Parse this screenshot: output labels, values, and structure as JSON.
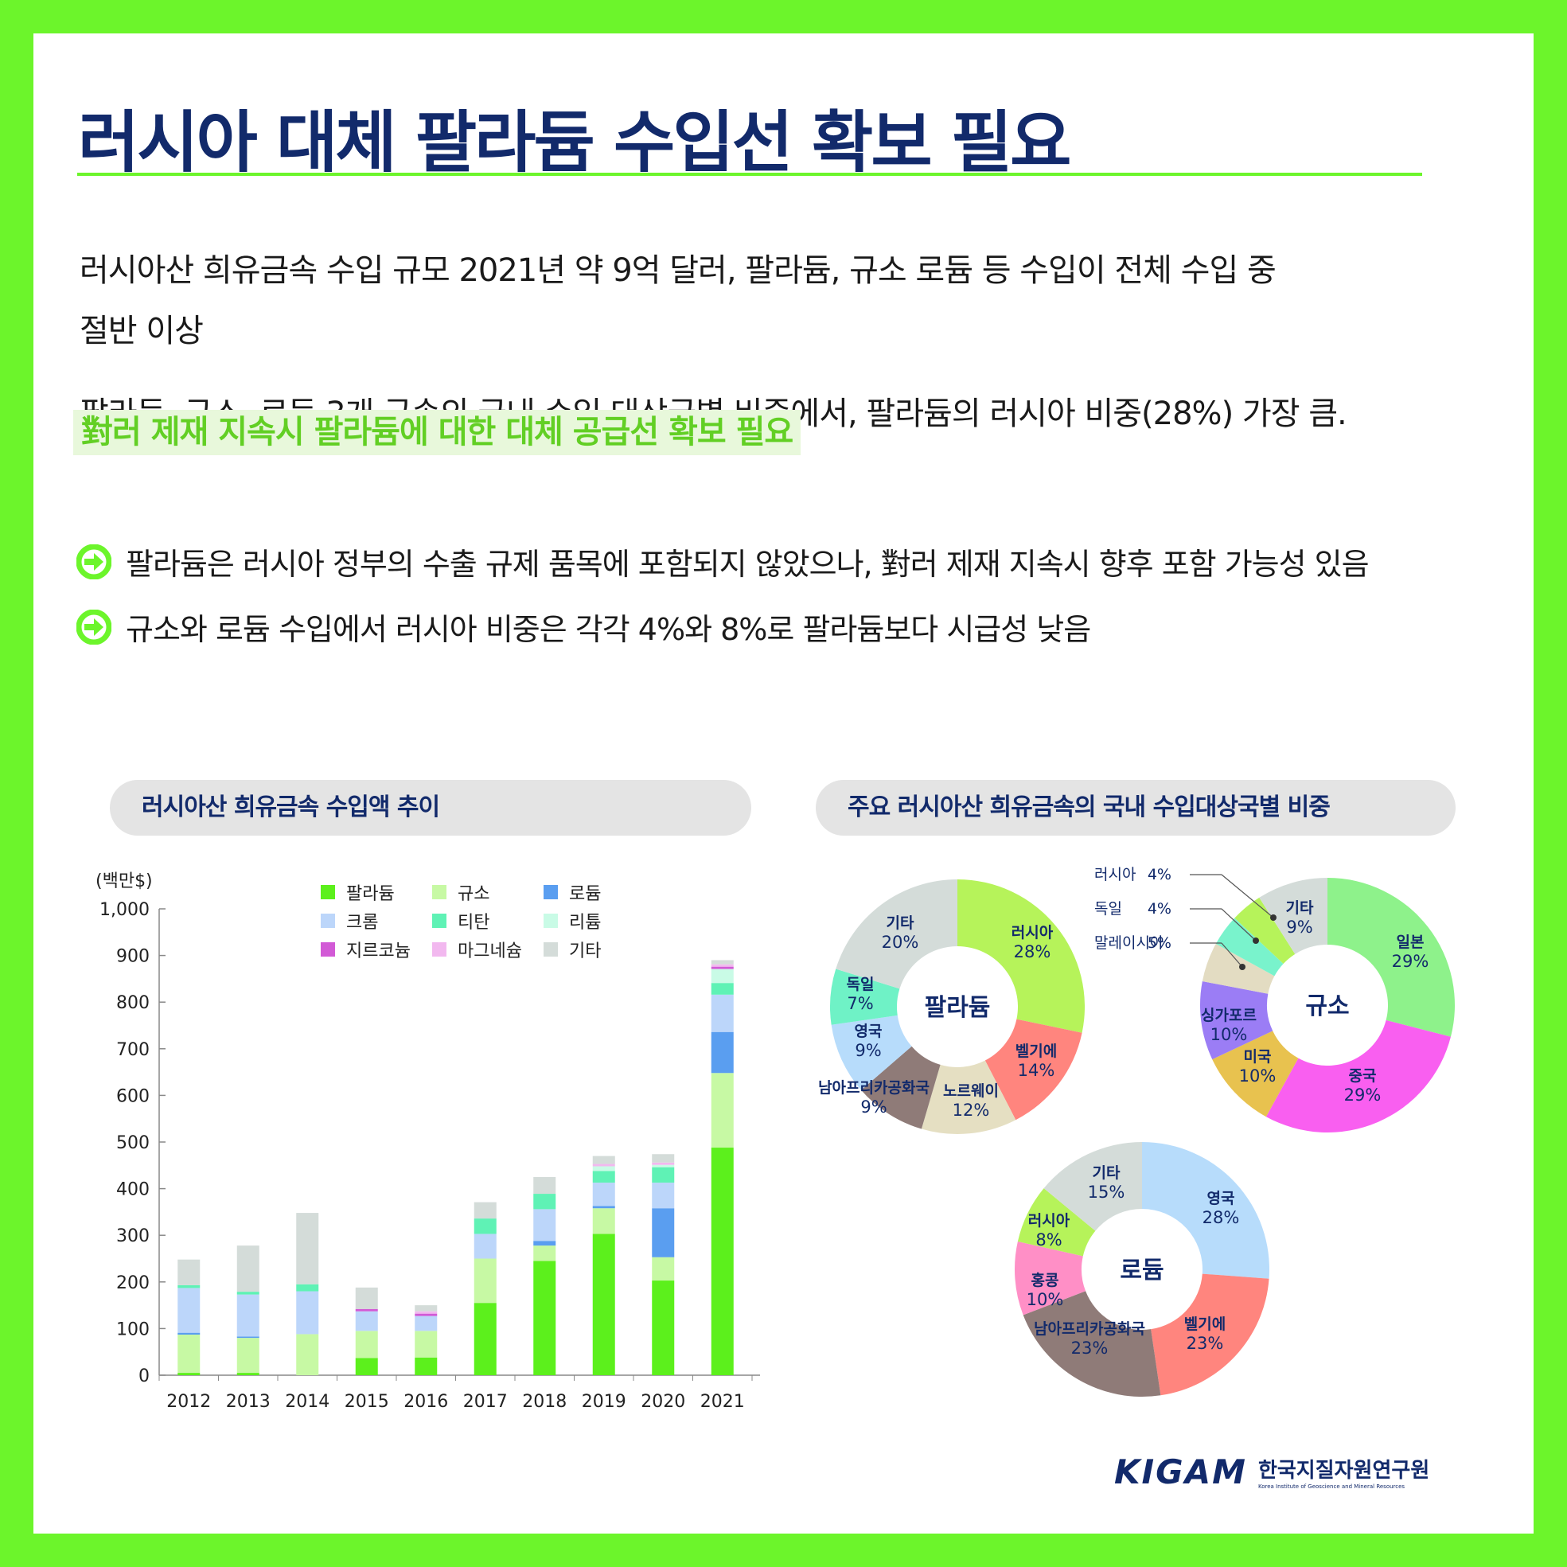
{
  "header": {
    "title": "러시아 대체 팔라듐 수입선 확보 필요"
  },
  "body": {
    "para1_line1": "러시아산 희유금속 수입 규모 2021년 약 9억 달러, 팔라듐, 규소 로듐 등 수입이 전체 수입 중",
    "para1_line2": "절반 이상",
    "para2": "팔라듐, 규소, 로듐 3개 금속의 국내 수입 대상국별 비중에서, 팔라듐의 러시아 비중(28%) 가장 큼.",
    "highlight": "對러 제재 지속시 팔라듐에 대한 대체 공급선 확보 필요",
    "bullets": [
      "팔라듐은 러시아 정부의 수출 규제 품목에 포함되지 않았으나, 對러 제재 지속시 향후 포함 가능성 있음",
      "규소와 로듐 수입에서 러시아 비중은 각각 4%와 8%로 팔라듐보다 시급성 낮음"
    ]
  },
  "section_titles": {
    "left": "러시아산 희유금속 수입액 추이",
    "right": "주요 러시아산 희유금속의 국내 수입대상국별 비중"
  },
  "colors": {
    "frame": "#6cf52b",
    "title": "#122a6b",
    "highlight_text": "#62cf24",
    "highlight_bg": "#e8f8db"
  },
  "chart_data": [
    {
      "type": "bar",
      "stacked": true,
      "ylabel": "(백만$)",
      "ylim": [
        0,
        1000
      ],
      "yticks": [
        0,
        100,
        200,
        300,
        400,
        500,
        600,
        700,
        800,
        900,
        1000
      ],
      "ytick_labels": [
        "0",
        "100",
        "200",
        "300",
        "400",
        "500",
        "600",
        "700",
        "800",
        "900",
        "1,000"
      ],
      "categories": [
        "2012",
        "2013",
        "2014",
        "2015",
        "2016",
        "2017",
        "2018",
        "2019",
        "2020",
        "2021"
      ],
      "legend_position": "top",
      "series": [
        {
          "name": "팔라듐",
          "color": "#5cf01c",
          "values": [
            5,
            5,
            0,
            37,
            38,
            155,
            245,
            303,
            203,
            488
          ]
        },
        {
          "name": "규소",
          "color": "#c7f9a4",
          "values": [
            82,
            75,
            88,
            58,
            57,
            95,
            33,
            55,
            50,
            160
          ]
        },
        {
          "name": "로듐",
          "color": "#5a9ef0",
          "values": [
            4,
            3,
            0,
            0,
            0,
            0,
            10,
            5,
            105,
            88
          ]
        },
        {
          "name": "크롬",
          "color": "#bcd6fa",
          "values": [
            96,
            90,
            92,
            42,
            32,
            53,
            68,
            50,
            55,
            80
          ]
        },
        {
          "name": "티탄",
          "color": "#5ff2b5",
          "values": [
            6,
            6,
            15,
            0,
            0,
            33,
            33,
            25,
            33,
            25
          ]
        },
        {
          "name": "리튬",
          "color": "#c9fbe6",
          "values": [
            0,
            0,
            0,
            0,
            0,
            0,
            0,
            10,
            5,
            30
          ]
        },
        {
          "name": "지르코늄",
          "color": "#d25ad6",
          "values": [
            0,
            0,
            0,
            5,
            5,
            0,
            0,
            0,
            0,
            5
          ]
        },
        {
          "name": "마그네슘",
          "color": "#f2b8ef",
          "values": [
            0,
            0,
            0,
            0,
            5,
            0,
            0,
            5,
            5,
            5
          ]
        },
        {
          "name": "기타",
          "color": "#d4dcd9",
          "values": [
            55,
            99,
            153,
            46,
            13,
            35,
            36,
            17,
            18,
            9
          ]
        }
      ]
    },
    {
      "type": "pie",
      "donut": true,
      "title": "팔라듐",
      "slices": [
        {
          "label": "러시아",
          "value": 28,
          "pct": "28%",
          "color": "#b6f35a"
        },
        {
          "label": "벨기에",
          "value": 14,
          "pct": "14%",
          "color": "#ff857e"
        },
        {
          "label": "노르웨이",
          "value": 12,
          "pct": "12%",
          "color": "#e5dfc2"
        },
        {
          "label": "남아프리카공화국",
          "value": 9,
          "pct": "9%",
          "color": "#8f7b78"
        },
        {
          "label": "영국",
          "value": 9,
          "pct": "9%",
          "color": "#b7dcfb"
        },
        {
          "label": "독일",
          "value": 7,
          "pct": "7%",
          "color": "#6ff2c6"
        },
        {
          "label": "기타",
          "value": 20,
          "pct": "20%",
          "color": "#d4dcd9"
        }
      ]
    },
    {
      "type": "pie",
      "donut": true,
      "title": "규소",
      "slices": [
        {
          "label": "일본",
          "value": 29,
          "pct": "29%",
          "color": "#8ef28b"
        },
        {
          "label": "중국",
          "value": 29,
          "pct": "29%",
          "color": "#f95ff0"
        },
        {
          "label": "미국",
          "value": 10,
          "pct": "10%",
          "color": "#e8c24f"
        },
        {
          "label": "싱가포르",
          "value": 10,
          "pct": "10%",
          "color": "#9b7df5"
        },
        {
          "label": "말레이시아",
          "value": 5,
          "pct": "5%",
          "color": "#e3dcc2"
        },
        {
          "label": "독일",
          "value": 4,
          "pct": "4%",
          "color": "#79f3cc"
        },
        {
          "label": "러시아",
          "value": 4,
          "pct": "4%",
          "color": "#b6f35a"
        },
        {
          "label": "기타",
          "value": 9,
          "pct": "9%",
          "color": "#d4dcd9"
        }
      ]
    },
    {
      "type": "pie",
      "donut": true,
      "title": "로듐",
      "slices": [
        {
          "label": "영국",
          "value": 28,
          "pct": "28%",
          "color": "#b7dcfb"
        },
        {
          "label": "벨기에",
          "value": 23,
          "pct": "23%",
          "color": "#ff857e"
        },
        {
          "label": "남아프리카공화국",
          "value": 23,
          "pct": "23%",
          "color": "#8f7b78"
        },
        {
          "label": "홍콩",
          "value": 10,
          "pct": "10%",
          "color": "#ff8fc6"
        },
        {
          "label": "러시아",
          "value": 8,
          "pct": "8%",
          "color": "#b6f35a"
        },
        {
          "label": "기타",
          "value": 15,
          "pct": "15%",
          "color": "#d4dcd9"
        }
      ]
    }
  ],
  "footer": {
    "brand": "KIGAM",
    "org_name": "한국지질자원연구원",
    "org_name_en": "Korea Institute of Geoscience and Mineral Resources"
  }
}
